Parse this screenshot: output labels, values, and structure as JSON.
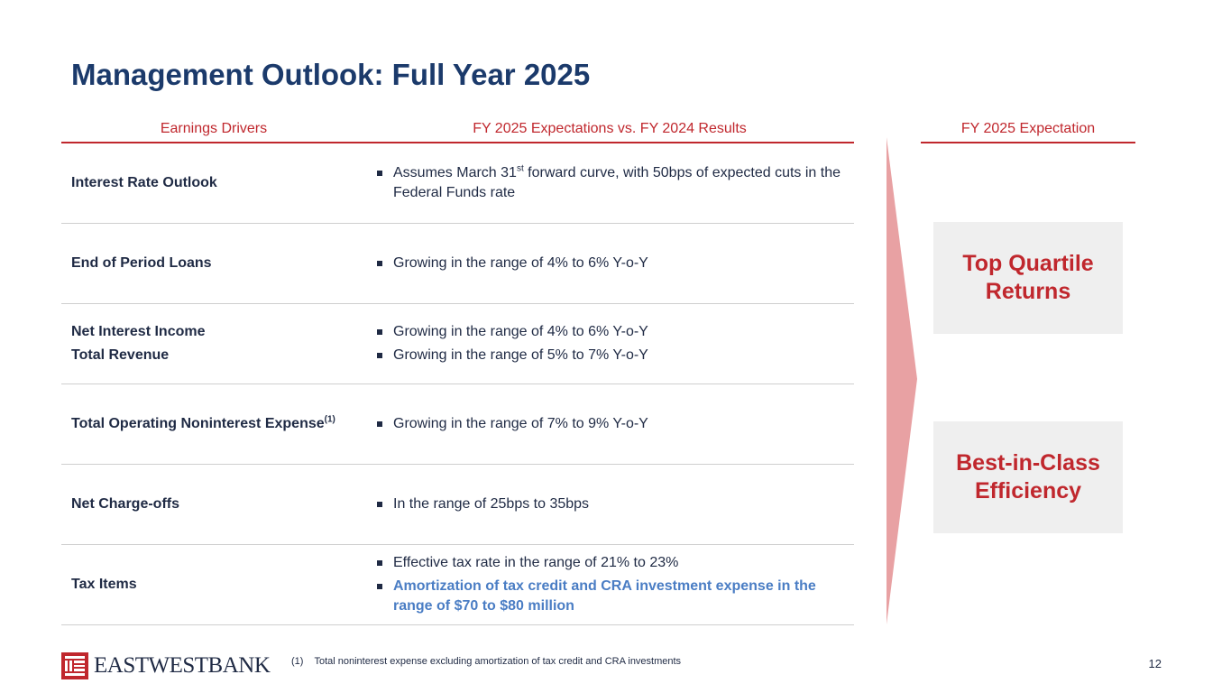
{
  "title": "Management Outlook: Full Year 2025",
  "headers": {
    "drivers": "Earnings Drivers",
    "expectations": "FY 2025 Expectations vs. FY 2024 Results",
    "fy_expectation": "FY 2025 Expectation"
  },
  "rows": [
    {
      "driver_lines": [
        "Interest Rate Outlook"
      ],
      "bullet_1_pre": "Assumes March 31",
      "bullet_1_sup": "st",
      "bullet_1_post": " forward curve, with 50bps of expected cuts in the Federal Funds rate"
    },
    {
      "driver_lines": [
        "End of Period Loans"
      ],
      "bullets": [
        "Growing in the range of 4% to 6% Y-o-Y"
      ]
    },
    {
      "driver_lines": [
        "Net Interest Income",
        "Total Revenue"
      ],
      "bullets": [
        "Growing in the range of 4% to 6% Y-o-Y",
        "Growing in the range of 5% to 7% Y-o-Y"
      ]
    },
    {
      "driver_lines": [
        "Total Operating Noninterest Expense"
      ],
      "driver_sup": "(1)",
      "bullets": [
        "Growing in the range of 7% to 9% Y-o-Y"
      ]
    },
    {
      "driver_lines": [
        "Net Charge-offs"
      ],
      "bullets": [
        "In the range of 25bps to 35bps"
      ]
    },
    {
      "driver_lines": [
        "Tax Items"
      ],
      "bullets": [
        "Effective tax rate in the range of 21% to 23%"
      ],
      "highlight_bullet": "Amortization of tax credit and CRA investment expense in the range of $70 to $80 million"
    }
  ],
  "outcomes": [
    "Top Quartile Returns",
    "Best-in-Class Efficiency"
  ],
  "logo_text": "EASTWESTBANK",
  "footnote": {
    "number": "(1)",
    "text": "Total noninterest expense excluding amortization of tax credit and CRA investments"
  },
  "page_number": "12",
  "colors": {
    "title": "#1b3a6b",
    "accent_red": "#c0272d",
    "highlight_blue": "#4a7dc4",
    "arrow_pink": "#e8a1a3",
    "box_gray": "#efefef"
  }
}
